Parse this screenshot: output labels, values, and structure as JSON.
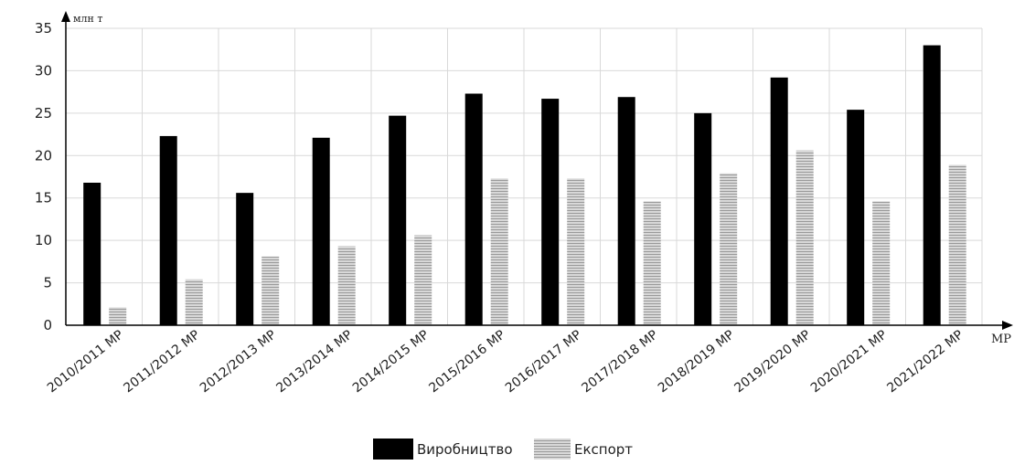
{
  "chart_data": {
    "type": "bar",
    "y_unit": "млн т",
    "x_unit": "МР",
    "categories": [
      "2010/2011 МР",
      "2011/2012 МР",
      "2012/2013 МР",
      "2013/2014 МР",
      "2014/2015 МР",
      "2015/2016 МР",
      "2016/2017 МР",
      "2017/2018 МР",
      "2018/2019 МР",
      "2019/2020 МР",
      "2020/2021 МР",
      "2021/2022 МР"
    ],
    "series": [
      {
        "name": "Виробництво",
        "color": "#000000",
        "values": [
          16.8,
          22.3,
          15.6,
          22.1,
          24.7,
          27.3,
          26.7,
          26.9,
          25.0,
          29.2,
          25.4,
          33.0
        ]
      },
      {
        "name": "Експорт",
        "color": "#c4c4c4",
        "pattern": "horizontal-lines",
        "values": [
          2.1,
          5.4,
          8.1,
          9.3,
          10.6,
          17.3,
          17.3,
          14.6,
          17.9,
          20.6,
          14.6,
          18.9
        ]
      }
    ],
    "yticks": [
      0,
      5,
      10,
      15,
      20,
      25,
      30,
      35
    ],
    "ylim": [
      0,
      35
    ],
    "grid": true,
    "legend_position": "bottom-center"
  }
}
